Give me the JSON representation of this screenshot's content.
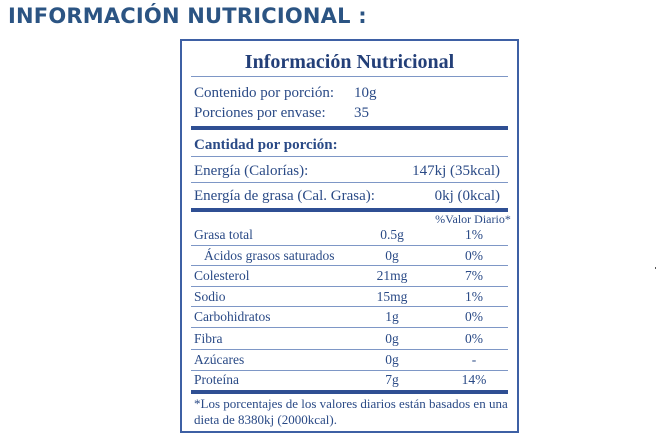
{
  "heading": "INFORMACIÓN NUTRICIONAL :",
  "panel": {
    "title": "Información Nutricional",
    "serving": [
      {
        "label": "Contenido por porción:",
        "value": "10g"
      },
      {
        "label": "Porciones por envase:",
        "value": "35"
      }
    ],
    "amount_header": "Cantidad por porción:",
    "energy": [
      {
        "label": "Energía (Calorías):",
        "value": "147kj  (35kcal)"
      },
      {
        "label": "Energía de grasa (Cal. Grasa):",
        "value": "0kj  (0kcal)"
      }
    ],
    "dv_header": "%Valor Diario*",
    "rows": [
      {
        "name": "Grasa total",
        "amount": "0.5g",
        "dv": "1%"
      },
      {
        "name": "Ácidos grasos saturados",
        "amount": "0g",
        "dv": "0%"
      },
      {
        "name": "Colesterol",
        "amount": "21mg",
        "dv": "7%"
      },
      {
        "name": "Sodio",
        "amount": "15mg",
        "dv": "1%"
      },
      {
        "name": "Carbohidratos",
        "amount": "1g",
        "dv": "0%"
      },
      {
        "name": "Fibra",
        "amount": "0g",
        "dv": "0%"
      },
      {
        "name": "Azúcares",
        "amount": "0g",
        "dv": "-"
      },
      {
        "name": "Proteína",
        "amount": "7g",
        "dv": "14%"
      }
    ],
    "footnote": "*Los porcentajes de los valores diarios están basados en una dieta de 8380kj (2000kcal)."
  }
}
